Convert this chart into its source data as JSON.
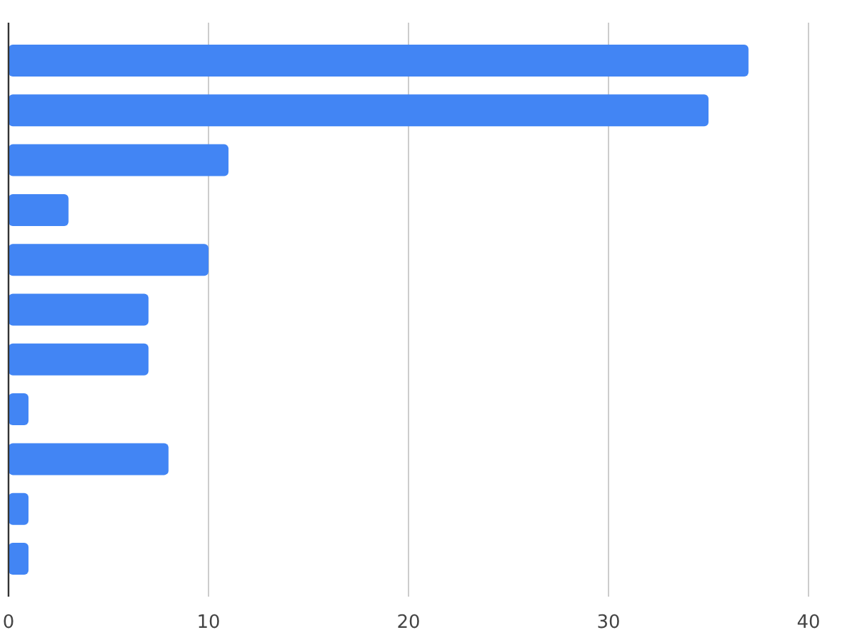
{
  "chart_data": {
    "type": "bar",
    "orientation": "horizontal",
    "categories": [
      null,
      null,
      null,
      null,
      null,
      null,
      null,
      null,
      null,
      null,
      null
    ],
    "values": [
      37,
      35,
      11,
      3,
      10,
      7,
      7,
      1,
      8,
      1,
      1
    ],
    "color": "#4285f4",
    "xlim": [
      0,
      40
    ],
    "xticks": [
      0,
      10,
      20,
      30,
      40
    ],
    "grid": "x"
  }
}
